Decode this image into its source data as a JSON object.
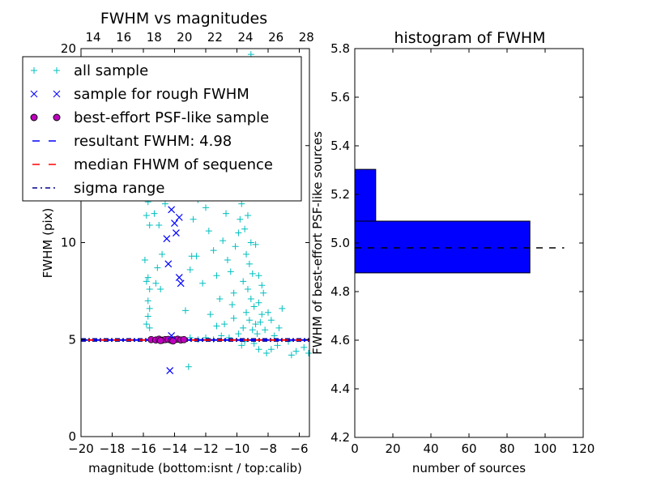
{
  "chart_data": [
    {
      "type": "scatter",
      "title": "FWHM vs magnitudes",
      "xlabel": "magnitude (bottom:isnt / top:calib)",
      "ylabel": "FWHM (pix)",
      "xlim": [
        -20,
        -5.35
      ],
      "ylim": [
        0,
        20
      ],
      "top_xlim": [
        13.2,
        28.2
      ],
      "xticks": [
        "−20",
        "−18",
        "−16",
        "−14",
        "−12",
        "−10",
        "−8",
        "−6"
      ],
      "xtick_values": [
        -20,
        -18,
        -16,
        -14,
        -12,
        -10,
        -8,
        -6
      ],
      "top_xticks": [
        "14",
        "16",
        "18",
        "20",
        "22",
        "24",
        "26",
        "28"
      ],
      "top_xtick_values": [
        14,
        16,
        18,
        20,
        22,
        24,
        26,
        28
      ],
      "yticks": [
        "0",
        "5",
        "10",
        "15",
        "20"
      ],
      "ytick_values": [
        0,
        5,
        10,
        15,
        20
      ],
      "legend_position": "upper-left",
      "series": [
        {
          "name": "all sample",
          "marker": "+",
          "color": "#00bfbf",
          "points": [
            [
              -15.7,
              12.1
            ],
            [
              -15.8,
              11.4
            ],
            [
              -15.6,
              10.9
            ],
            [
              -15.9,
              9.1
            ],
            [
              -15.7,
              8.2
            ],
            [
              -15.8,
              8.0
            ],
            [
              -15.6,
              7.6
            ],
            [
              -15.7,
              7.0
            ],
            [
              -15.6,
              6.6
            ],
            [
              -15.7,
              6.2
            ],
            [
              -15.8,
              5.8
            ],
            [
              -15.6,
              5.6
            ],
            [
              -15.5,
              12.8
            ],
            [
              -15.3,
              11.5
            ],
            [
              -15.0,
              10.9
            ],
            [
              -14.8,
              9.4
            ],
            [
              -15.1,
              8.7
            ],
            [
              -14.9,
              7.6
            ],
            [
              -15.2,
              7.9
            ],
            [
              -13.3,
              6.5
            ],
            [
              -13.1,
              3.6
            ],
            [
              -14.6,
              12.0
            ],
            [
              -13.5,
              13.0
            ],
            [
              -12.9,
              9.3
            ],
            [
              -12.6,
              9.3
            ],
            [
              -13.0,
              8.6
            ],
            [
              -12.8,
              11.2
            ],
            [
              -12.5,
              12.2
            ],
            [
              -12.0,
              11.8
            ],
            [
              -11.8,
              10.6
            ],
            [
              -11.5,
              9.6
            ],
            [
              -11.3,
              8.3
            ],
            [
              -11.1,
              7.1
            ],
            [
              -11.7,
              6.3
            ],
            [
              -12.2,
              7.9
            ],
            [
              -10.9,
              10.1
            ],
            [
              -10.7,
              11.5
            ],
            [
              -11.0,
              12.6
            ],
            [
              -10.5,
              13.4
            ],
            [
              -10.3,
              6.8
            ],
            [
              -10.2,
              7.4
            ],
            [
              -10.4,
              8.5
            ],
            [
              -10.6,
              9.1
            ],
            [
              -10.1,
              9.8
            ],
            [
              -9.9,
              10.5
            ],
            [
              -9.8,
              11.2
            ],
            [
              -9.7,
              12.0
            ],
            [
              -9.6,
              13.0
            ],
            [
              -9.5,
              14.2
            ],
            [
              -9.4,
              15.0
            ],
            [
              -9.8,
              16.2
            ],
            [
              -9.6,
              17.5
            ],
            [
              -9.3,
              18.4
            ],
            [
              -9.7,
              19.2
            ],
            [
              -9.1,
              19.7
            ],
            [
              -10.0,
              14.0
            ],
            [
              -9.2,
              13.1
            ],
            [
              -9.0,
              12.4
            ],
            [
              -9.3,
              11.4
            ],
            [
              -9.5,
              10.7
            ],
            [
              -9.1,
              10.0
            ],
            [
              -9.4,
              9.4
            ],
            [
              -9.2,
              8.9
            ],
            [
              -9.0,
              8.4
            ],
            [
              -9.6,
              8.0
            ],
            [
              -9.3,
              7.6
            ],
            [
              -9.1,
              7.1
            ],
            [
              -8.9,
              6.7
            ],
            [
              -9.4,
              6.4
            ],
            [
              -9.2,
              6.0
            ],
            [
              -8.8,
              5.8
            ],
            [
              -9.0,
              5.5
            ],
            [
              -8.7,
              5.3
            ],
            [
              -8.5,
              5.9
            ],
            [
              -8.4,
              6.3
            ],
            [
              -8.6,
              6.9
            ],
            [
              -8.3,
              7.4
            ],
            [
              -8.0,
              6.4
            ],
            [
              -7.8,
              6.0
            ],
            [
              -8.2,
              5.5
            ],
            [
              -7.6,
              5.2
            ],
            [
              -7.4,
              4.7
            ],
            [
              -7.8,
              4.5
            ],
            [
              -8.1,
              4.3
            ],
            [
              -8.6,
              4.5
            ],
            [
              -8.9,
              4.8
            ],
            [
              -9.5,
              4.9
            ],
            [
              -6.7,
              4.9
            ],
            [
              -6.2,
              4.4
            ],
            [
              -6.5,
              4.2
            ],
            [
              -5.7,
              4.6
            ],
            [
              -5.4,
              4.3
            ],
            [
              -9.7,
              4.7
            ],
            [
              -10.5,
              5.1
            ],
            [
              -11.0,
              5.2
            ],
            [
              -11.5,
              5.0
            ],
            [
              -12.0,
              5.1
            ],
            [
              -12.5,
              5.0
            ],
            [
              -13.0,
              5.1
            ],
            [
              -10.8,
              5.8
            ],
            [
              -11.3,
              5.7
            ],
            [
              -10.2,
              6.1
            ],
            [
              -9.9,
              5.3
            ],
            [
              -9.6,
              5.6
            ],
            [
              -8.8,
              9.9
            ],
            [
              -8.6,
              8.3
            ],
            [
              -8.4,
              7.8
            ],
            [
              -9.0,
              14.8
            ],
            [
              -8.8,
              16.1
            ],
            [
              -9.5,
              18.7
            ],
            [
              -10.1,
              16.4
            ],
            [
              -10.8,
              14.3
            ],
            [
              -12.4,
              13.7
            ],
            [
              -13.8,
              14.1
            ],
            [
              -14.7,
              12.9
            ],
            [
              -7.3,
              5.6
            ],
            [
              -7.1,
              6.6
            ]
          ]
        },
        {
          "name": "sample for rough FWHM",
          "marker": "x",
          "color": "#0000ff",
          "points": [
            [
              -14.2,
              11.7
            ],
            [
              -13.7,
              11.3
            ],
            [
              -14.0,
              11.0
            ],
            [
              -14.5,
              10.2
            ],
            [
              -13.9,
              10.5
            ],
            [
              -14.4,
              8.9
            ],
            [
              -13.7,
              8.2
            ],
            [
              -13.6,
              7.9
            ],
            [
              -14.2,
              5.2
            ],
            [
              -14.3,
              3.4
            ]
          ]
        },
        {
          "name": "best-effort PSF-like sample",
          "marker": "o",
          "color": "#bf00bf",
          "points": [
            [
              -15.5,
              5.0
            ],
            [
              -15.2,
              4.98
            ],
            [
              -15.0,
              5.02
            ],
            [
              -14.8,
              4.97
            ],
            [
              -14.6,
              5.0
            ],
            [
              -14.4,
              5.01
            ],
            [
              -14.2,
              4.96
            ],
            [
              -14.0,
              4.99
            ],
            [
              -13.8,
              5.02
            ],
            [
              -13.6,
              4.98
            ],
            [
              -13.4,
              5.0
            ],
            [
              -14.9,
              4.95
            ],
            [
              -14.1,
              4.93
            ]
          ]
        },
        {
          "name": "resultant FWHM: 4.98",
          "line": "dashed",
          "color": "#0000ff",
          "y": 4.98
        },
        {
          "name": "median FHWM of sequence",
          "line": "dashed",
          "color": "#ff0000",
          "y": 4.98
        },
        {
          "name": "sigma range",
          "line": "dashdot",
          "color": "#00008b",
          "y": [
            4.92,
            5.04
          ]
        }
      ]
    },
    {
      "type": "bar",
      "orientation": "horizontal",
      "title": "histogram of FWHM",
      "xlabel": "number of sources",
      "ylabel": "FWHM of best-effort PSF-like sources",
      "xlim": [
        0,
        120
      ],
      "ylim": [
        4.2,
        5.8
      ],
      "xticks": [
        "0",
        "20",
        "40",
        "60",
        "80",
        "100",
        "120"
      ],
      "xtick_values": [
        0,
        20,
        40,
        60,
        80,
        100,
        120
      ],
      "yticks": [
        "4.2",
        "4.4",
        "4.6",
        "4.8",
        "5.0",
        "5.2",
        "5.4",
        "5.6",
        "5.8"
      ],
      "ytick_values": [
        4.2,
        4.4,
        4.6,
        4.8,
        5.0,
        5.2,
        5.4,
        5.6,
        5.8
      ],
      "bins": [
        [
          4.877,
          5.09
        ],
        [
          5.09,
          5.303
        ]
      ],
      "values": [
        92,
        11
      ],
      "color": "#0000ff",
      "reference_line": {
        "y": 4.98,
        "x_end": 110,
        "style": "dashed"
      }
    }
  ]
}
